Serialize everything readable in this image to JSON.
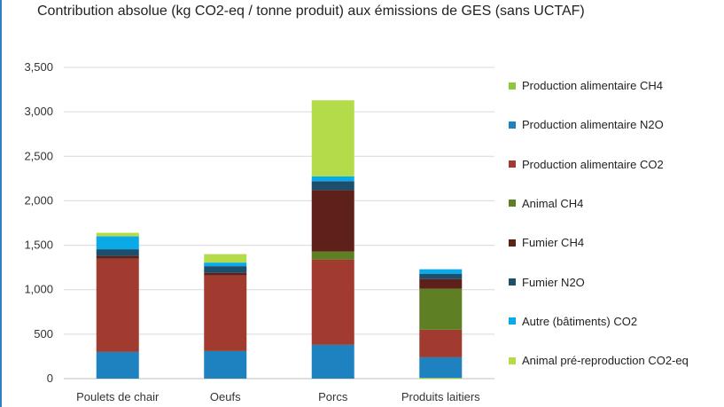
{
  "chart_data": {
    "type": "bar",
    "stacked": true,
    "title": "Contribution absolue (kg CO2-eq / tonne produit) aux émissions de GES (sans UCTAF)",
    "xlabel": "",
    "ylabel": "",
    "ylim": [
      0,
      3500
    ],
    "yticks": [
      "0",
      "500",
      "1,000",
      "1,500",
      "2,000",
      "2,500",
      "3,000",
      "3,500"
    ],
    "ytick_values": [
      0,
      500,
      1000,
      1500,
      2000,
      2500,
      3000,
      3500
    ],
    "grid": true,
    "legend_position": "right",
    "categories": [
      "Poulets de chair",
      "Oeufs",
      "Porcs",
      "Produits laitiers"
    ],
    "series": [
      {
        "name": "Production alimentaire CH4",
        "color": "#8dc63f",
        "values": [
          0,
          0,
          0,
          10
        ]
      },
      {
        "name": "Production alimentaire N2O",
        "color": "#1f82c0",
        "values": [
          300,
          310,
          380,
          230
        ]
      },
      {
        "name": "Production alimentaire CO2",
        "color": "#a23b2f",
        "values": [
          1050,
          850,
          960,
          310
        ]
      },
      {
        "name": "Animal CH4",
        "color": "#5f7f25",
        "values": [
          0,
          0,
          90,
          460
        ]
      },
      {
        "name": "Fumier CH4",
        "color": "#5e2119",
        "values": [
          30,
          30,
          690,
          110
        ]
      },
      {
        "name": "Fumier N2O",
        "color": "#1c4e6e",
        "values": [
          75,
          75,
          100,
          60
        ]
      },
      {
        "name": "Autre (bâtiments) CO2",
        "color": "#0aa9e8",
        "values": [
          145,
          40,
          55,
          50
        ]
      },
      {
        "name": "Animal pré-reproduction CO2-eq",
        "color": "#b4dc4a",
        "values": [
          40,
          95,
          855,
          0
        ]
      }
    ],
    "legend_order": [
      0,
      1,
      2,
      3,
      4,
      5,
      6,
      7
    ]
  }
}
